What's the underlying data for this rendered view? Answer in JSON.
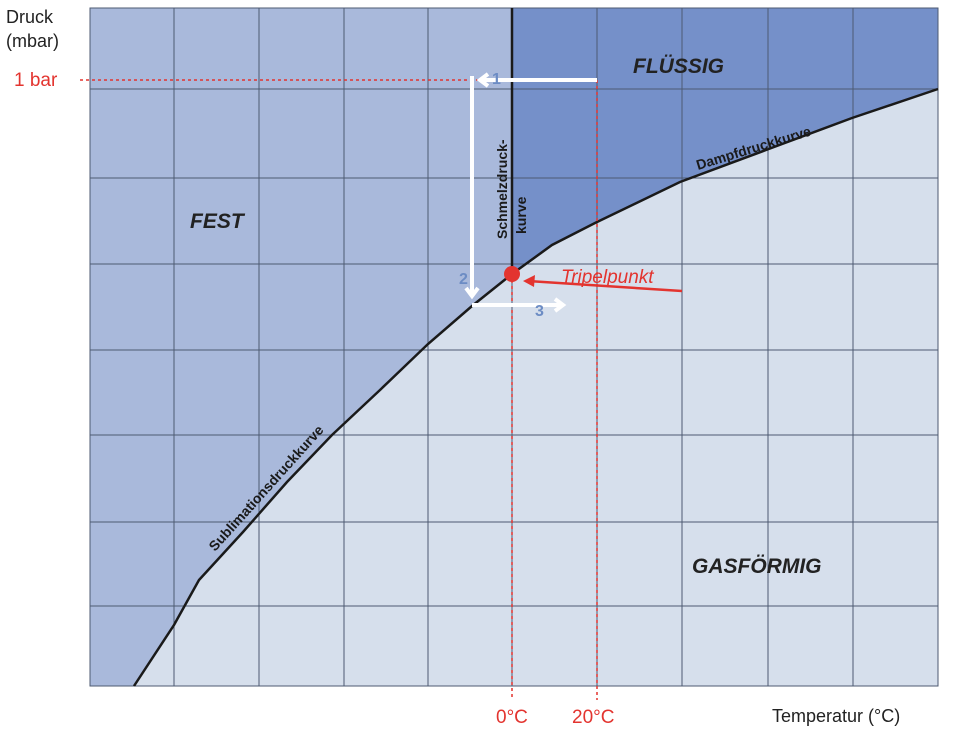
{
  "axes": {
    "y_label_line1": "Druck",
    "y_label_line2": "(mbar)",
    "x_label": "Temperatur (°C)"
  },
  "markers": {
    "pressure_1bar": "1 bar",
    "temp_0": "0°C",
    "temp_20": "20°C"
  },
  "regions": {
    "solid": "FEST",
    "liquid": "FLÜSSIG",
    "gas": "GASFÖRMIG"
  },
  "curves": {
    "sublimation": "Sublimationsdruckkurve",
    "vapor": "Dampfdruckkurve",
    "melting_line1": "Schmelzdruck-",
    "melting_line2": "kurve"
  },
  "triple_point": "Tripelpunkt",
  "steps": [
    "1",
    "2",
    "3"
  ],
  "colors": {
    "solid": "#a9b9db",
    "liquid": "#7590c9",
    "gas": "#d6dfec",
    "accent": "#e3342f",
    "arrow": "#ffffff",
    "step_number": "#6c8cc4"
  }
}
